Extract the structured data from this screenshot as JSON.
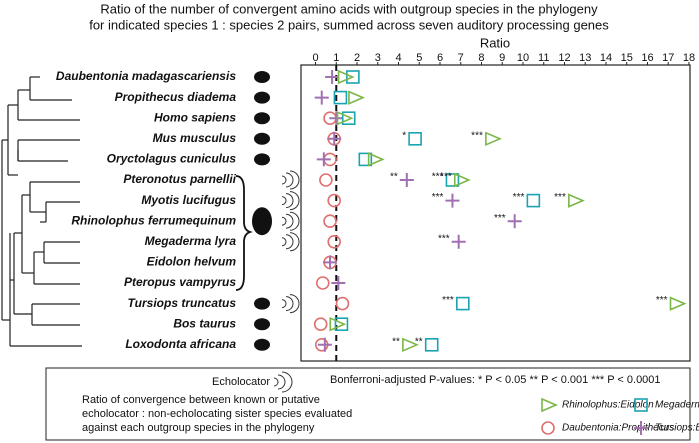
{
  "chart_data": {
    "type": "dotplot",
    "title": [
      "Ratio of the number of convergent amino acids with outgroup species in the phylogeny",
      "for indicated species 1 : species 2 pairs, summed across seven auditory processing genes"
    ],
    "x_label": "Ratio",
    "categories": [
      "Daubentonia madagascariensis",
      "Propithecus diadema",
      "Homo sapiens",
      "Mus musculus",
      "Oryctolagus cuniculus",
      "Pteronotus parnellii",
      "Myotis lucifugus",
      "Rhinolophus ferrumequinum",
      "Megaderma lyra",
      "Eidolon helvum",
      "Pteropus vampyrus",
      "Tursiops truncatus",
      "Bos taurus",
      "Loxodonta africana"
    ],
    "xlim": [
      -0.7,
      18.05
    ],
    "xticks": [
      0,
      1,
      2,
      3,
      4,
      5,
      6,
      7,
      8,
      9,
      10,
      11,
      12,
      13,
      14,
      15,
      16,
      17,
      18
    ],
    "reference_line": 1,
    "series": [
      {
        "name": "Rhinolophus:Eidolon",
        "marker": "triangle",
        "color": "#7ab648",
        "values": [
          1.4,
          1.9,
          1.35,
          8.5,
          2.85,
          7.0,
          12.5,
          null,
          null,
          null,
          null,
          17.4,
          1.0,
          4.5
        ],
        "significance": [
          null,
          null,
          null,
          "***",
          null,
          "***",
          "***",
          null,
          null,
          null,
          null,
          "***",
          null,
          "**"
        ]
      },
      {
        "name": "Megaderma:Pteropus",
        "marker": "square",
        "color": "#1aa3b0",
        "values": [
          1.8,
          1.2,
          1.6,
          4.8,
          2.4,
          6.6,
          10.5,
          null,
          null,
          null,
          null,
          7.1,
          1.25,
          5.6
        ],
        "significance": [
          null,
          null,
          null,
          "*",
          null,
          "***",
          "***",
          null,
          null,
          null,
          null,
          "***",
          null,
          "**"
        ]
      },
      {
        "name": "Daubentonia:Propithecus",
        "marker": "circle",
        "color": "#e07070",
        "values": [
          null,
          null,
          0.7,
          0.9,
          0.7,
          0.5,
          0.9,
          0.7,
          0.9,
          0.7,
          0.35,
          1.3,
          0.25,
          0.3
        ],
        "significance": [
          null,
          null,
          null,
          null,
          null,
          null,
          null,
          null,
          null,
          null,
          null,
          null,
          null,
          null
        ]
      },
      {
        "name": "Tursiops:Bos",
        "marker": "plus",
        "color": "#a070b0",
        "values": [
          0.8,
          0.3,
          1.0,
          0.9,
          0.4,
          4.4,
          6.6,
          9.6,
          6.9,
          0.7,
          1.1,
          null,
          null,
          0.45
        ],
        "significance": [
          null,
          null,
          null,
          null,
          null,
          "**",
          "***",
          "***",
          "***",
          null,
          null,
          null,
          null,
          null
        ]
      }
    ],
    "echolocator_label": "Echolocator",
    "pvalue_note": "Bonferroni-adjusted P-values:  * P < 0.05   ** P < 0.001  *** P < 0.0001",
    "description": [
      "Ratio of convergence between known or putative",
      "echolocator : non-echolocating sister species evaluated",
      "against each outgroup species in the phylogeny"
    ]
  }
}
